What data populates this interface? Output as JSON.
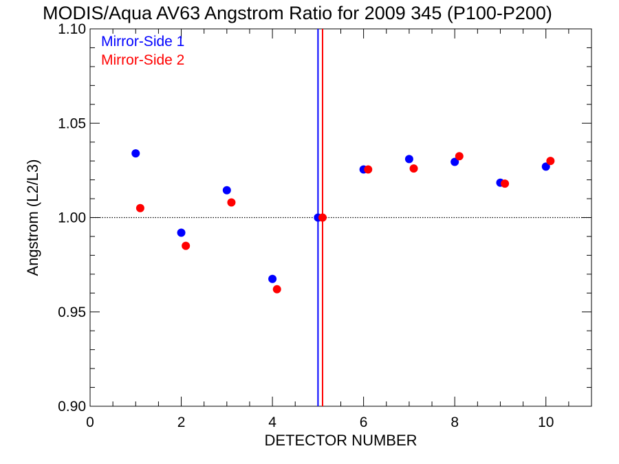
{
  "chart_data": {
    "type": "scatter",
    "title": "MODIS/Aqua AV63 Angstrom Ratio for 2009 345 (P100-P200)",
    "xlabel": "DETECTOR NUMBER",
    "ylabel": "Angstrom (L2/L3)",
    "xlim": [
      0,
      11
    ],
    "ylim": [
      0.9,
      1.1
    ],
    "x_ticks": [
      0,
      2,
      4,
      6,
      8,
      10
    ],
    "x_tick_labels": [
      "0",
      "2",
      "4",
      "6",
      "8",
      "10"
    ],
    "y_ticks": [
      0.9,
      0.95,
      1.0,
      1.05,
      1.1
    ],
    "y_tick_labels": [
      "0.90",
      "0.95",
      "1.00",
      "1.05",
      "1.10"
    ],
    "reference_line_y": 1.0,
    "vertical_lines": [
      {
        "x": 5.0,
        "color": "#0000ff"
      },
      {
        "x": 5.1,
        "color": "#ff0000"
      }
    ],
    "legend_position": "top-left",
    "series": [
      {
        "name": "Mirror-Side 1",
        "color": "#0000ff",
        "x": [
          1,
          2,
          3,
          4,
          5,
          6,
          7,
          8,
          9,
          10
        ],
        "y": [
          1.034,
          0.992,
          1.0145,
          0.9675,
          1.0,
          1.0255,
          1.031,
          1.0295,
          1.0185,
          1.027
        ]
      },
      {
        "name": "Mirror-Side 2",
        "color": "#ff0000",
        "x": [
          1.1,
          2.1,
          3.1,
          4.1,
          5.1,
          6.1,
          7.1,
          8.1,
          9.1,
          10.1
        ],
        "y": [
          1.005,
          0.985,
          1.008,
          0.962,
          1.0,
          1.0255,
          1.026,
          1.0325,
          1.018,
          1.03
        ]
      }
    ]
  }
}
